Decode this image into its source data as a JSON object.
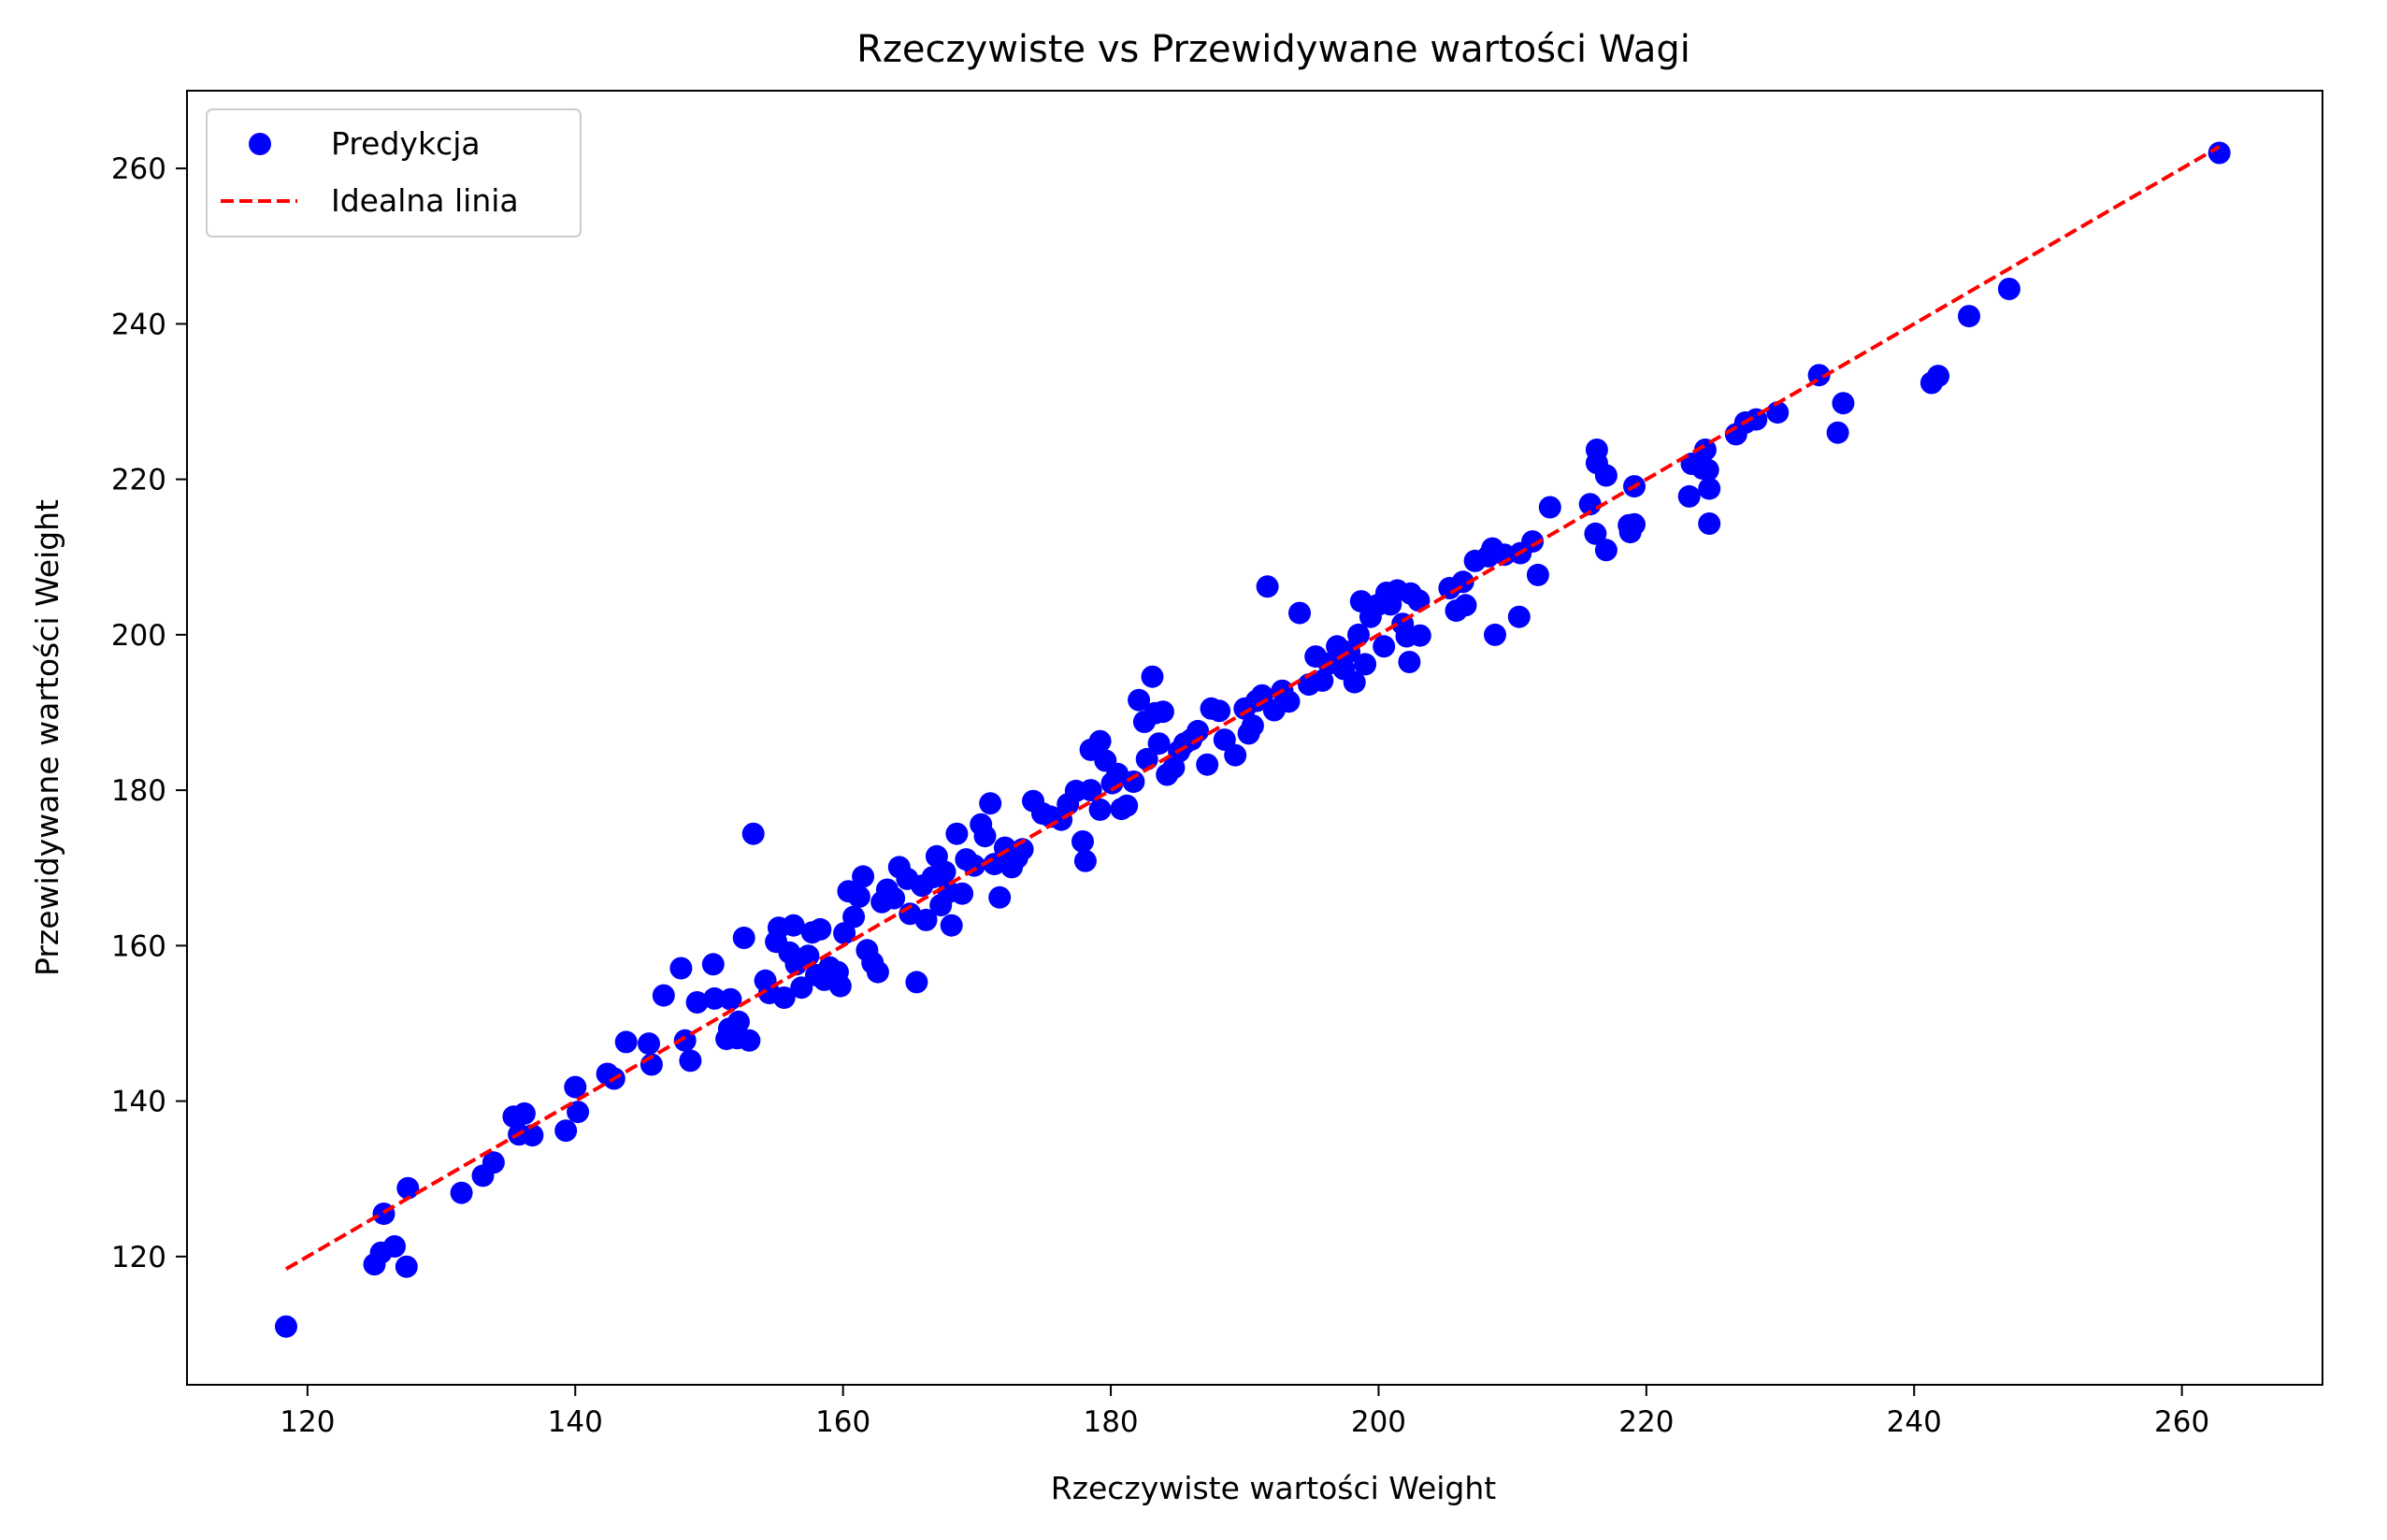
{
  "chart_data": {
    "type": "scatter",
    "title": "Rzeczywiste vs Przewidywane wartości Wagi",
    "xlabel": "Rzeczywiste wartości Weight",
    "ylabel": "Przewidywane wartości Weight",
    "xlim": [
      111,
      270.5
    ],
    "ylim": [
      103.5,
      270
    ],
    "xticks": [
      120,
      140,
      160,
      180,
      200,
      220,
      240,
      260
    ],
    "yticks": [
      120,
      140,
      160,
      180,
      200,
      220,
      240,
      260
    ],
    "grid": false,
    "legend_position": "top-left",
    "series": [
      {
        "name": "Predykcja",
        "kind": "scatter",
        "color": "#0000ff",
        "points": [
          [
            118.4,
            111.0
          ],
          [
            125.0,
            119.0
          ],
          [
            125.5,
            120.5
          ],
          [
            126.5,
            121.3
          ],
          [
            127.4,
            118.7
          ],
          [
            125.7,
            125.5
          ],
          [
            127.5,
            128.8
          ],
          [
            131.5,
            128.2
          ],
          [
            133.1,
            130.4
          ],
          [
            133.9,
            132.1
          ],
          [
            135.4,
            138.0
          ],
          [
            136.2,
            138.4
          ],
          [
            135.8,
            135.7
          ],
          [
            136.8,
            135.6
          ],
          [
            139.3,
            136.2
          ],
          [
            140.0,
            141.8
          ],
          [
            140.2,
            138.6
          ],
          [
            142.4,
            143.5
          ],
          [
            142.9,
            142.9
          ],
          [
            143.8,
            147.6
          ],
          [
            145.5,
            147.4
          ],
          [
            145.7,
            144.7
          ],
          [
            146.6,
            153.6
          ],
          [
            147.9,
            157.1
          ],
          [
            148.2,
            147.8
          ],
          [
            148.6,
            145.2
          ],
          [
            149.1,
            152.7
          ],
          [
            150.3,
            157.6
          ],
          [
            150.4,
            153.2
          ],
          [
            151.3,
            148.0
          ],
          [
            151.5,
            149.3
          ],
          [
            151.6,
            153.1
          ],
          [
            152.1,
            148.1
          ],
          [
            152.2,
            150.2
          ],
          [
            152.6,
            161.0
          ],
          [
            153.0,
            147.8
          ],
          [
            153.3,
            174.4
          ],
          [
            154.2,
            155.5
          ],
          [
            154.5,
            153.9
          ],
          [
            155.0,
            160.5
          ],
          [
            155.2,
            162.3
          ],
          [
            155.6,
            153.3
          ],
          [
            156.0,
            159.1
          ],
          [
            156.3,
            162.6
          ],
          [
            156.5,
            157.6
          ],
          [
            156.9,
            154.6
          ],
          [
            157.4,
            158.7
          ],
          [
            157.7,
            161.7
          ],
          [
            158.0,
            156.2
          ],
          [
            158.3,
            162.1
          ],
          [
            158.6,
            155.6
          ],
          [
            159.0,
            157.2
          ],
          [
            159.6,
            156.6
          ],
          [
            159.8,
            154.8
          ],
          [
            160.1,
            161.6
          ],
          [
            160.4,
            167.0
          ],
          [
            160.8,
            163.7
          ],
          [
            161.2,
            166.3
          ],
          [
            161.5,
            168.9
          ],
          [
            161.8,
            159.4
          ],
          [
            162.2,
            157.8
          ],
          [
            162.6,
            156.6
          ],
          [
            162.9,
            165.6
          ],
          [
            163.3,
            167.2
          ],
          [
            163.8,
            166.1
          ],
          [
            164.2,
            170.1
          ],
          [
            164.8,
            168.6
          ],
          [
            165.0,
            164.1
          ],
          [
            165.5,
            155.3
          ],
          [
            165.9,
            167.7
          ],
          [
            166.2,
            163.3
          ],
          [
            166.7,
            168.8
          ],
          [
            167.0,
            171.5
          ],
          [
            167.3,
            165.2
          ],
          [
            167.6,
            169.5
          ],
          [
            167.9,
            166.9
          ],
          [
            168.1,
            162.6
          ],
          [
            168.5,
            174.4
          ],
          [
            168.9,
            166.7
          ],
          [
            169.2,
            171.1
          ],
          [
            169.8,
            170.3
          ],
          [
            170.3,
            175.6
          ],
          [
            170.6,
            174.1
          ],
          [
            171.0,
            178.3
          ],
          [
            171.3,
            170.5
          ],
          [
            171.7,
            166.2
          ],
          [
            172.1,
            172.6
          ],
          [
            172.6,
            170.1
          ],
          [
            173.0,
            171.3
          ],
          [
            173.4,
            172.4
          ],
          [
            174.2,
            178.6
          ],
          [
            174.9,
            177.0
          ],
          [
            175.5,
            176.6
          ],
          [
            176.3,
            176.2
          ],
          [
            176.8,
            178.2
          ],
          [
            177.4,
            179.9
          ],
          [
            177.9,
            173.4
          ],
          [
            178.1,
            170.9
          ],
          [
            178.5,
            180.0
          ],
          [
            178.5,
            185.2
          ],
          [
            179.2,
            186.3
          ],
          [
            179.2,
            177.5
          ],
          [
            179.6,
            183.8
          ],
          [
            180.1,
            180.9
          ],
          [
            180.5,
            182.1
          ],
          [
            180.8,
            177.6
          ],
          [
            181.2,
            178.0
          ],
          [
            181.7,
            181.1
          ],
          [
            182.1,
            191.6
          ],
          [
            182.5,
            188.8
          ],
          [
            182.7,
            184.0
          ],
          [
            183.1,
            194.6
          ],
          [
            183.3,
            189.9
          ],
          [
            183.6,
            186.0
          ],
          [
            183.9,
            190.1
          ],
          [
            184.2,
            182.0
          ],
          [
            184.7,
            182.9
          ],
          [
            185.1,
            185.0
          ],
          [
            185.5,
            186.0
          ],
          [
            186.0,
            186.5
          ],
          [
            186.5,
            187.6
          ],
          [
            187.2,
            183.3
          ],
          [
            187.5,
            190.5
          ],
          [
            188.1,
            190.2
          ],
          [
            188.5,
            186.5
          ],
          [
            189.3,
            184.5
          ],
          [
            190.0,
            190.5
          ],
          [
            190.3,
            187.3
          ],
          [
            190.6,
            188.3
          ],
          [
            190.9,
            191.5
          ],
          [
            191.3,
            192.2
          ],
          [
            191.7,
            206.2
          ],
          [
            192.2,
            190.3
          ],
          [
            192.8,
            192.8
          ],
          [
            193.3,
            191.4
          ],
          [
            194.1,
            202.8
          ],
          [
            194.8,
            193.6
          ],
          [
            195.3,
            197.2
          ],
          [
            195.8,
            194.1
          ],
          [
            196.3,
            196.3
          ],
          [
            196.9,
            198.5
          ],
          [
            197.4,
            195.6
          ],
          [
            197.8,
            197.8
          ],
          [
            198.2,
            193.9
          ],
          [
            198.5,
            200.0
          ],
          [
            198.7,
            204.3
          ],
          [
            199.0,
            196.2
          ],
          [
            199.4,
            202.3
          ],
          [
            199.9,
            203.8
          ],
          [
            200.4,
            198.5
          ],
          [
            200.6,
            205.4
          ],
          [
            200.9,
            203.9
          ],
          [
            201.4,
            205.7
          ],
          [
            201.8,
            201.4
          ],
          [
            202.1,
            199.8
          ],
          [
            202.3,
            196.5
          ],
          [
            202.4,
            205.3
          ],
          [
            203.0,
            204.4
          ],
          [
            203.1,
            199.9
          ],
          [
            205.3,
            206.0
          ],
          [
            205.8,
            203.1
          ],
          [
            206.3,
            206.8
          ],
          [
            206.5,
            203.8
          ],
          [
            207.2,
            209.5
          ],
          [
            208.2,
            210.1
          ],
          [
            208.5,
            211.1
          ],
          [
            208.7,
            200.0
          ],
          [
            209.4,
            210.3
          ],
          [
            210.5,
            202.3
          ],
          [
            210.6,
            210.5
          ],
          [
            211.5,
            212.0
          ],
          [
            211.9,
            207.7
          ],
          [
            212.8,
            216.4
          ],
          [
            215.8,
            216.8
          ],
          [
            216.2,
            213.0
          ],
          [
            216.3,
            222.1
          ],
          [
            216.3,
            223.8
          ],
          [
            217.0,
            210.9
          ],
          [
            217.0,
            220.5
          ],
          [
            218.7,
            214.1
          ],
          [
            218.8,
            213.2
          ],
          [
            219.1,
            214.2
          ],
          [
            219.1,
            219.1
          ],
          [
            223.2,
            217.8
          ],
          [
            223.4,
            222.0
          ],
          [
            224.2,
            221.4
          ],
          [
            224.4,
            223.8
          ],
          [
            224.6,
            221.2
          ],
          [
            224.7,
            218.8
          ],
          [
            224.7,
            214.3
          ],
          [
            226.7,
            225.8
          ],
          [
            227.4,
            227.3
          ],
          [
            228.2,
            227.7
          ],
          [
            229.8,
            228.6
          ],
          [
            232.9,
            233.4
          ],
          [
            234.3,
            226.0
          ],
          [
            234.7,
            229.8
          ],
          [
            241.3,
            232.4
          ],
          [
            241.8,
            233.3
          ],
          [
            244.1,
            241.0
          ],
          [
            247.1,
            244.5
          ],
          [
            262.8,
            262.0
          ]
        ]
      },
      {
        "name": "Idealna linia",
        "kind": "line",
        "style": "dashed",
        "color": "#ff0000",
        "x": [
          118.4,
          262.8
        ],
        "y": [
          118.4,
          262.8
        ]
      }
    ]
  }
}
